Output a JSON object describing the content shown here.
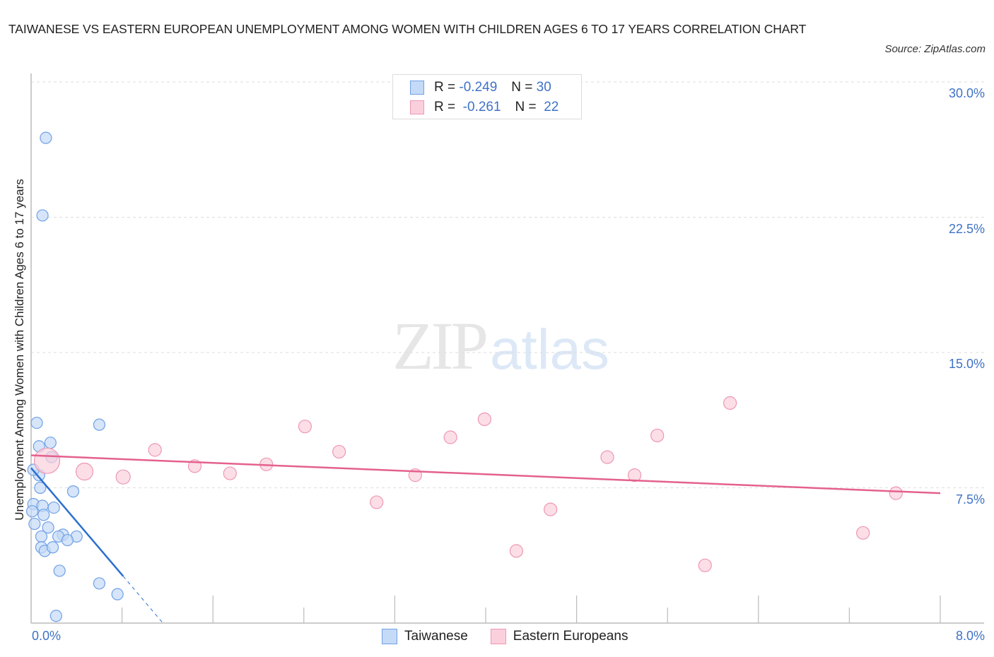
{
  "chart_data": {
    "type": "scatter",
    "title": "TAIWANESE VS EASTERN EUROPEAN UNEMPLOYMENT AMONG WOMEN WITH CHILDREN AGES 6 TO 17 YEARS CORRELATION CHART",
    "source": "Source: ZipAtlas.com",
    "xlabel": "",
    "ylabel": "Unemployment Among Women with Children Ages 6 to 17 years",
    "xlim": [
      0,
      8
    ],
    "ylim": [
      0,
      30
    ],
    "x_tick_labels": [
      "0.0%",
      "8.0%"
    ],
    "y_tick_labels": [
      "30.0%",
      "22.5%",
      "15.0%",
      "7.5%"
    ],
    "y_ticks": [
      30,
      22.5,
      15,
      7.5
    ],
    "grid": true,
    "legend_position": "top-center and bottom",
    "stats": [
      {
        "series": "Taiwanese",
        "r_label": "R = ",
        "r": "-0.249",
        "n_label": "N = ",
        "n": "30"
      },
      {
        "series": "Eastern Europeans",
        "r_label": "R = ",
        "r": "-0.261",
        "n_label": "N = ",
        "n": "22"
      }
    ],
    "series": [
      {
        "name": "Taiwanese",
        "color": "#6fa0e6",
        "fill": "#c5daf7",
        "line_color": "#2a6fcf",
        "trend": {
          "x0": 0.0,
          "y0": 8.6,
          "x1": 0.81,
          "y1": 2.6,
          "dashed_to_x": 1.16,
          "dashed_to_y": 0.0
        },
        "points": [
          {
            "x": 0.13,
            "y": 26.9,
            "r": 8
          },
          {
            "x": 0.1,
            "y": 22.6,
            "r": 8
          },
          {
            "x": 0.05,
            "y": 11.1,
            "r": 8
          },
          {
            "x": 0.6,
            "y": 11.0,
            "r": 8
          },
          {
            "x": 0.07,
            "y": 9.8,
            "r": 8
          },
          {
            "x": 0.17,
            "y": 10.0,
            "r": 8
          },
          {
            "x": 0.18,
            "y": 9.2,
            "r": 8
          },
          {
            "x": 0.07,
            "y": 8.2,
            "r": 8
          },
          {
            "x": 0.08,
            "y": 7.5,
            "r": 8
          },
          {
            "x": 0.37,
            "y": 7.3,
            "r": 8
          },
          {
            "x": 0.02,
            "y": 6.6,
            "r": 8
          },
          {
            "x": 0.1,
            "y": 6.5,
            "r": 8
          },
          {
            "x": 0.2,
            "y": 6.4,
            "r": 8
          },
          {
            "x": 0.11,
            "y": 6.0,
            "r": 8
          },
          {
            "x": 0.03,
            "y": 5.5,
            "r": 8
          },
          {
            "x": 0.15,
            "y": 5.3,
            "r": 8
          },
          {
            "x": 0.09,
            "y": 4.8,
            "r": 8
          },
          {
            "x": 0.28,
            "y": 4.9,
            "r": 8
          },
          {
            "x": 0.24,
            "y": 4.8,
            "r": 8
          },
          {
            "x": 0.4,
            "y": 4.8,
            "r": 8
          },
          {
            "x": 0.32,
            "y": 4.6,
            "r": 8
          },
          {
            "x": 0.09,
            "y": 4.2,
            "r": 8
          },
          {
            "x": 0.12,
            "y": 4.0,
            "r": 8
          },
          {
            "x": 0.19,
            "y": 4.2,
            "r": 8
          },
          {
            "x": 0.25,
            "y": 2.9,
            "r": 8
          },
          {
            "x": 0.6,
            "y": 2.2,
            "r": 8
          },
          {
            "x": 0.76,
            "y": 1.6,
            "r": 8
          },
          {
            "x": 0.22,
            "y": 0.4,
            "r": 8
          },
          {
            "x": 0.02,
            "y": 8.5,
            "r": 8
          },
          {
            "x": 0.01,
            "y": 6.2,
            "r": 8
          }
        ]
      },
      {
        "name": "Eastern Europeans",
        "color": "#ee97b3",
        "fill": "#fbd0dd",
        "line_color": "#e4618e",
        "trend": {
          "x0": 0.0,
          "y0": 9.3,
          "x1": 8.0,
          "y1": 7.2
        },
        "points": [
          {
            "x": 0.14,
            "y": 9.0,
            "r": 18
          },
          {
            "x": 0.47,
            "y": 8.4,
            "r": 12
          },
          {
            "x": 0.81,
            "y": 8.1,
            "r": 10
          },
          {
            "x": 1.09,
            "y": 9.6,
            "r": 9
          },
          {
            "x": 1.44,
            "y": 8.7,
            "r": 9
          },
          {
            "x": 1.75,
            "y": 8.3,
            "r": 9
          },
          {
            "x": 2.07,
            "y": 8.8,
            "r": 9
          },
          {
            "x": 2.41,
            "y": 10.9,
            "r": 9
          },
          {
            "x": 2.71,
            "y": 9.5,
            "r": 9
          },
          {
            "x": 3.04,
            "y": 6.7,
            "r": 9
          },
          {
            "x": 3.38,
            "y": 8.2,
            "r": 9
          },
          {
            "x": 3.69,
            "y": 10.3,
            "r": 9
          },
          {
            "x": 3.99,
            "y": 11.3,
            "r": 9
          },
          {
            "x": 4.27,
            "y": 4.0,
            "r": 9
          },
          {
            "x": 4.57,
            "y": 6.3,
            "r": 9
          },
          {
            "x": 5.07,
            "y": 9.2,
            "r": 9
          },
          {
            "x": 5.31,
            "y": 8.2,
            "r": 9
          },
          {
            "x": 5.51,
            "y": 10.4,
            "r": 9
          },
          {
            "x": 5.93,
            "y": 3.2,
            "r": 9
          },
          {
            "x": 6.15,
            "y": 12.2,
            "r": 9
          },
          {
            "x": 7.32,
            "y": 5.0,
            "r": 9
          },
          {
            "x": 7.61,
            "y": 7.2,
            "r": 9
          }
        ]
      }
    ]
  },
  "ui": {
    "title": "TAIWANESE VS EASTERN EUROPEAN UNEMPLOYMENT AMONG WOMEN WITH CHILDREN AGES 6 TO 17 YEARS CORRELATION CHART",
    "source": "Source: ZipAtlas.com",
    "ylabel": "Unemployment Among Women with Children Ages 6 to 17 years",
    "yticks": [
      "30.0%",
      "22.5%",
      "15.0%",
      "7.5%"
    ],
    "xticks": {
      "left": "0.0%",
      "right": "8.0%"
    },
    "legend": {
      "rows": [
        {
          "r_label": "R =",
          "r": "-0.249",
          "n_label": "N =",
          "n": "30"
        },
        {
          "r_label": "R =",
          "r": "-0.261",
          "n_label": "N =",
          "n": "22"
        }
      ],
      "bottom": [
        "Taiwanese",
        "Eastern Europeans"
      ]
    },
    "watermark": {
      "zip": "ZIP",
      "atlas": "atlas"
    },
    "colors": {
      "blue_fill": "#c5daf7",
      "blue_stroke": "#6fa0e6",
      "blue_line": "#2a6fcf",
      "pink_fill": "#fbd0dd",
      "pink_stroke": "#ee97b3",
      "pink_line": "#e4618e",
      "axis_text": "#3f72c6"
    }
  }
}
